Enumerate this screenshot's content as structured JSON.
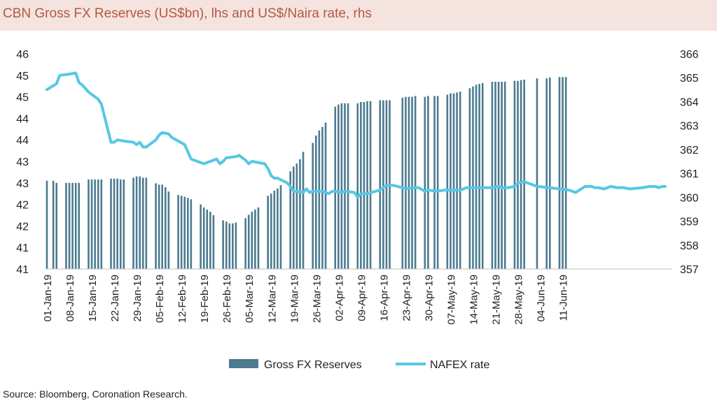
{
  "title": "CBN Gross FX Reserves (US$bn), lhs and US$/Naira rate, rhs",
  "source": "Source: Bloomberg, Coronation Research.",
  "colors": {
    "bars": "#4c7a8f",
    "line": "#56c8e3",
    "title": "#b5593f",
    "title_band": "#f5e3df"
  },
  "chart_data": {
    "type": "bar+line",
    "left_axis": {
      "ticks": [
        "46",
        "45",
        "45",
        "44",
        "44",
        "43",
        "43",
        "42",
        "42",
        "41",
        "41"
      ],
      "min": 41,
      "max": 46
    },
    "right_axis": {
      "ticks": [
        "366",
        "365",
        "364",
        "363",
        "362",
        "361",
        "360",
        "359",
        "358",
        "357"
      ],
      "min": 357,
      "max": 366
    },
    "x_tick_labels": [
      "01-Jan-19",
      "08-Jan-19",
      "15-Jan-19",
      "22-Jan-19",
      "29-Jan-19",
      "05-Feb-19",
      "12-Feb-19",
      "19-Feb-19",
      "26-Feb-19",
      "05-Mar-19",
      "12-Mar-19",
      "19-Mar-19",
      "26-Mar-19",
      "02-Apr-19",
      "09-Apr-19",
      "16-Apr-19",
      "23-Apr-19",
      "30-Apr-19",
      "07-May-19",
      "14-May-19",
      "21-May-19",
      "28-May-19",
      "04-Jun-19",
      "11-Jun-19"
    ],
    "series": [
      {
        "name": "Gross FX Reserves",
        "axis": "left",
        "type": "bar",
        "values": [
          [
            0,
            43.05
          ],
          [
            2,
            43.05
          ],
          [
            3,
            43.0
          ],
          [
            6,
            43.0
          ],
          [
            7,
            43.0
          ],
          [
            8,
            43.0
          ],
          [
            9,
            43.0
          ],
          [
            10,
            43.0
          ],
          [
            13,
            43.08
          ],
          [
            14,
            43.08
          ],
          [
            15,
            43.08
          ],
          [
            16,
            43.08
          ],
          [
            17,
            43.08
          ],
          [
            20,
            43.1
          ],
          [
            21,
            43.1
          ],
          [
            22,
            43.1
          ],
          [
            23,
            43.08
          ],
          [
            24,
            43.08
          ],
          [
            27,
            43.12
          ],
          [
            28,
            43.15
          ],
          [
            29,
            43.15
          ],
          [
            30,
            43.12
          ],
          [
            31,
            43.12
          ],
          [
            34,
            42.99
          ],
          [
            35,
            42.96
          ],
          [
            36,
            42.96
          ],
          [
            37,
            42.9
          ],
          [
            38,
            42.8
          ],
          [
            41,
            42.72
          ],
          [
            42,
            42.7
          ],
          [
            43,
            42.68
          ],
          [
            44,
            42.65
          ],
          [
            45,
            42.62
          ],
          [
            48,
            42.5
          ],
          [
            49,
            42.43
          ],
          [
            50,
            42.38
          ],
          [
            51,
            42.33
          ],
          [
            52,
            42.25
          ],
          [
            55,
            42.13
          ],
          [
            56,
            42.1
          ],
          [
            57,
            42.06
          ],
          [
            58,
            42.06
          ],
          [
            59,
            42.08
          ],
          [
            62,
            42.18
          ],
          [
            63,
            42.26
          ],
          [
            64,
            42.33
          ],
          [
            65,
            42.38
          ],
          [
            66,
            42.43
          ],
          [
            69,
            42.7
          ],
          [
            70,
            42.75
          ],
          [
            71,
            42.82
          ],
          [
            72,
            42.87
          ],
          [
            73,
            42.95
          ],
          [
            76,
            43.27
          ],
          [
            77,
            43.38
          ],
          [
            78,
            43.45
          ],
          [
            79,
            43.55
          ],
          [
            80,
            43.72
          ],
          [
            83,
            43.93
          ],
          [
            84,
            44.1
          ],
          [
            85,
            44.22
          ],
          [
            86,
            44.3
          ],
          [
            87,
            44.4
          ],
          [
            90,
            44.77
          ],
          [
            91,
            44.82
          ],
          [
            92,
            44.85
          ],
          [
            93,
            44.85
          ],
          [
            94,
            44.85
          ],
          [
            97,
            44.85
          ],
          [
            98,
            44.88
          ],
          [
            99,
            44.88
          ],
          [
            100,
            44.9
          ],
          [
            101,
            44.9
          ],
          [
            104,
            44.92
          ],
          [
            105,
            44.92
          ],
          [
            106,
            44.92
          ],
          [
            107,
            44.92
          ],
          [
            111,
            44.98
          ],
          [
            112,
            45.0
          ],
          [
            113,
            45.0
          ],
          [
            114,
            45.0
          ],
          [
            115,
            45.02
          ],
          [
            118,
            45.0
          ],
          [
            119,
            45.02
          ],
          [
            121,
            45.02
          ],
          [
            122,
            45.02
          ],
          [
            125,
            45.05
          ],
          [
            126,
            45.08
          ],
          [
            127,
            45.08
          ],
          [
            128,
            45.1
          ],
          [
            129,
            45.12
          ],
          [
            132,
            45.2
          ],
          [
            133,
            45.24
          ],
          [
            134,
            45.28
          ],
          [
            135,
            45.3
          ],
          [
            136,
            45.32
          ],
          [
            139,
            45.35
          ],
          [
            140,
            45.35
          ],
          [
            141,
            45.35
          ],
          [
            142,
            45.35
          ],
          [
            143,
            45.35
          ],
          [
            146,
            45.37
          ],
          [
            147,
            45.37
          ],
          [
            148,
            45.39
          ],
          [
            149,
            45.4
          ],
          [
            153,
            45.43
          ],
          [
            156,
            45.43
          ],
          [
            157,
            45.45
          ],
          [
            160,
            45.46
          ],
          [
            161,
            45.46
          ],
          [
            162,
            45.46
          ]
        ]
      },
      {
        "name": "NAFEX rate",
        "axis": "right",
        "type": "line",
        "values": [
          [
            0,
            364.5
          ],
          [
            3,
            364.75
          ],
          [
            4,
            365.1
          ],
          [
            7,
            365.15
          ],
          [
            9,
            365.2
          ],
          [
            10,
            364.8
          ],
          [
            11,
            364.7
          ],
          [
            13,
            364.4
          ],
          [
            16,
            364.1
          ],
          [
            17,
            363.9
          ],
          [
            20,
            362.3
          ],
          [
            21,
            362.3
          ],
          [
            22,
            362.4
          ],
          [
            24,
            362.35
          ],
          [
            27,
            362.3
          ],
          [
            28,
            362.2
          ],
          [
            29,
            362.3
          ],
          [
            30,
            362.1
          ],
          [
            31,
            362.1
          ],
          [
            34,
            362.4
          ],
          [
            35,
            362.6
          ],
          [
            36,
            362.7
          ],
          [
            38,
            362.65
          ],
          [
            39,
            362.5
          ],
          [
            43,
            362.2
          ],
          [
            44,
            361.9
          ],
          [
            45,
            361.6
          ],
          [
            48,
            361.45
          ],
          [
            49,
            361.4
          ],
          [
            52,
            361.55
          ],
          [
            53,
            361.6
          ],
          [
            54,
            361.4
          ],
          [
            55,
            361.5
          ],
          [
            56,
            361.65
          ],
          [
            59,
            361.7
          ],
          [
            60,
            361.75
          ],
          [
            62,
            361.55
          ],
          [
            63,
            361.4
          ],
          [
            64,
            361.5
          ],
          [
            68,
            361.4
          ],
          [
            69,
            361.2
          ],
          [
            70,
            360.9
          ],
          [
            71,
            360.8
          ],
          [
            72,
            360.8
          ],
          [
            75,
            360.6
          ],
          [
            76,
            360.45
          ],
          [
            77,
            360.25
          ],
          [
            78,
            360.25
          ],
          [
            80,
            360.2
          ],
          [
            81,
            360.35
          ],
          [
            82,
            360.2
          ],
          [
            83,
            360.25
          ],
          [
            86,
            360.25
          ],
          [
            88,
            360.15
          ],
          [
            89,
            360.25
          ],
          [
            90,
            360.25
          ],
          [
            92,
            360.2
          ],
          [
            93,
            360.25
          ],
          [
            96,
            360.2
          ],
          [
            97,
            360.0
          ],
          [
            98,
            360.15
          ],
          [
            100,
            360.15
          ],
          [
            104,
            360.3
          ],
          [
            106,
            360.5
          ],
          [
            107,
            360.5
          ],
          [
            108,
            360.5
          ],
          [
            111,
            360.4
          ],
          [
            112,
            360.35
          ],
          [
            114,
            360.4
          ],
          [
            116,
            360.4
          ],
          [
            118,
            360.25
          ],
          [
            119,
            360.3
          ],
          [
            122,
            360.25
          ],
          [
            124,
            360.3
          ],
          [
            126,
            360.3
          ],
          [
            129,
            360.3
          ],
          [
            131,
            360.4
          ],
          [
            136,
            360.4
          ],
          [
            139,
            360.4
          ],
          [
            141,
            360.45
          ],
          [
            142,
            360.4
          ],
          [
            144,
            360.4
          ],
          [
            146,
            360.45
          ],
          [
            147,
            360.6
          ],
          [
            149,
            360.65
          ],
          [
            153,
            360.45
          ],
          [
            157,
            360.4
          ],
          [
            160,
            360.35
          ],
          [
            163,
            360.3
          ],
          [
            164,
            360.25
          ],
          [
            165,
            360.2
          ],
          [
            168,
            360.45
          ],
          [
            170,
            360.45
          ],
          [
            171,
            360.4
          ],
          [
            172,
            360.4
          ],
          [
            174,
            360.35
          ],
          [
            176,
            360.45
          ],
          [
            178,
            360.4
          ],
          [
            180,
            360.4
          ],
          [
            182,
            360.35
          ],
          [
            186,
            360.4
          ],
          [
            188,
            360.45
          ],
          [
            190,
            360.45
          ],
          [
            191,
            360.4
          ],
          [
            192,
            360.45
          ],
          [
            193,
            360.45
          ]
        ]
      }
    ],
    "legend": {
      "position": "bottom",
      "items": [
        "Gross FX Reserves",
        "NAFEX rate"
      ]
    },
    "grid": false
  }
}
